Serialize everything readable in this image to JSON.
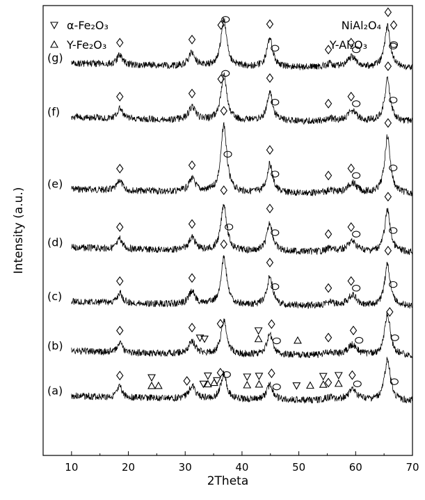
{
  "chart_data": {
    "type": "line",
    "xlabel": "2Theta",
    "ylabel": "Intensity (a.u.)",
    "xlim": [
      5,
      70
    ],
    "xticks": [
      10,
      20,
      30,
      40,
      50,
      60,
      70
    ],
    "ylim": [
      0,
      1
    ],
    "grid": false,
    "legend_left": [
      {
        "name": "α-Fe₂O₃",
        "marker": "triangle-down"
      },
      {
        "name": "Y-Fe₂O₃",
        "marker": "triangle-up"
      }
    ],
    "legend_right": [
      {
        "name": "NiAl₂O₄",
        "marker": "diamond"
      },
      {
        "name": "Y-Al₂O₃",
        "marker": "circle"
      }
    ],
    "peaks": [
      {
        "x": 18.5,
        "h": 2.0,
        "w": 0.5
      },
      {
        "x": 31.2,
        "h": 2.5,
        "w": 0.7
      },
      {
        "x": 36.8,
        "h": 9.0,
        "w": 0.6
      },
      {
        "x": 44.9,
        "h": 5.5,
        "w": 0.6
      },
      {
        "x": 55.5,
        "h": 0.6,
        "w": 0.8
      },
      {
        "x": 59.4,
        "h": 2.0,
        "w": 1.0
      },
      {
        "x": 65.6,
        "h": 8.0,
        "w": 0.6
      }
    ],
    "series": [
      {
        "name": "(a)",
        "baseline": 0.12,
        "scale": 1.0,
        "sample": 0
      },
      {
        "name": "(b)",
        "baseline": 0.22,
        "scale": 1.0,
        "sample": 1
      },
      {
        "name": "(c)",
        "baseline": 0.33,
        "scale": 1.0,
        "sample": 2
      },
      {
        "name": "(d)",
        "baseline": 0.45,
        "scale": 1.0,
        "sample": 3
      },
      {
        "name": "(e)",
        "baseline": 0.58,
        "scale": 1.0,
        "sample": 4
      },
      {
        "name": "(f)",
        "baseline": 0.74,
        "scale": 1.0,
        "sample": 5
      },
      {
        "name": "(g)",
        "baseline": 0.86,
        "scale": 1.0,
        "sample": 6
      }
    ],
    "annotations": [
      {
        "series": 0,
        "x": 18.5,
        "m": "diamond"
      },
      {
        "series": 0,
        "x": 24.1,
        "m": "triangle-up"
      },
      {
        "series": 0,
        "x": 24.1,
        "m": "triangle-down"
      },
      {
        "series": 0,
        "x": 25.3,
        "m": "triangle-up"
      },
      {
        "series": 0,
        "x": 30.3,
        "m": "diamond"
      },
      {
        "series": 0,
        "x": 33.2,
        "m": "triangle-down"
      },
      {
        "series": 0,
        "x": 34.0,
        "m": "triangle-up"
      },
      {
        "series": 0,
        "x": 34.0,
        "m": "triangle-down"
      },
      {
        "series": 0,
        "x": 35.1,
        "m": "triangle-up"
      },
      {
        "series": 0,
        "x": 35.6,
        "m": "triangle-down"
      },
      {
        "series": 0,
        "x": 36.2,
        "m": "diamond"
      },
      {
        "series": 0,
        "x": 37.3,
        "m": "circle"
      },
      {
        "series": 0,
        "x": 40.9,
        "m": "triangle-up"
      },
      {
        "series": 0,
        "x": 40.9,
        "m": "triangle-down"
      },
      {
        "series": 0,
        "x": 43.0,
        "m": "triangle-up"
      },
      {
        "series": 0,
        "x": 43.0,
        "m": "triangle-down"
      },
      {
        "series": 0,
        "x": 45.2,
        "m": "diamond"
      },
      {
        "series": 0,
        "x": 46.1,
        "m": "circle"
      },
      {
        "series": 0,
        "x": 49.6,
        "m": "triangle-down"
      },
      {
        "series": 0,
        "x": 52.0,
        "m": "triangle-up"
      },
      {
        "series": 0,
        "x": 54.3,
        "m": "triangle-up"
      },
      {
        "series": 0,
        "x": 54.3,
        "m": "triangle-down"
      },
      {
        "series": 0,
        "x": 55.2,
        "m": "diamond"
      },
      {
        "series": 0,
        "x": 57.0,
        "m": "triangle-up"
      },
      {
        "series": 0,
        "x": 57.0,
        "m": "triangle-down"
      },
      {
        "series": 0,
        "x": 59.4,
        "m": "diamond"
      },
      {
        "series": 0,
        "x": 60.3,
        "m": "circle"
      },
      {
        "series": 0,
        "x": 66.8,
        "m": "circle"
      },
      {
        "series": 1,
        "x": 18.5,
        "m": "diamond"
      },
      {
        "series": 1,
        "x": 31.2,
        "m": "diamond"
      },
      {
        "series": 1,
        "x": 32.6,
        "m": "triangle-down"
      },
      {
        "series": 1,
        "x": 33.4,
        "m": "triangle-down"
      },
      {
        "series": 1,
        "x": 36.2,
        "m": "diamond"
      },
      {
        "series": 1,
        "x": 42.9,
        "m": "triangle-up"
      },
      {
        "series": 1,
        "x": 42.9,
        "m": "triangle-down"
      },
      {
        "series": 1,
        "x": 45.2,
        "m": "diamond"
      },
      {
        "series": 1,
        "x": 46.1,
        "m": "circle"
      },
      {
        "series": 1,
        "x": 49.8,
        "m": "triangle-up"
      },
      {
        "series": 1,
        "x": 55.2,
        "m": "diamond"
      },
      {
        "series": 1,
        "x": 59.6,
        "m": "diamond"
      },
      {
        "series": 1,
        "x": 60.6,
        "m": "circle"
      },
      {
        "series": 1,
        "x": 66.0,
        "m": "diamond"
      },
      {
        "series": 1,
        "x": 66.9,
        "m": "circle"
      },
      {
        "series": 2,
        "x": 18.5,
        "m": "diamond"
      },
      {
        "series": 2,
        "x": 31.2,
        "m": "diamond"
      },
      {
        "series": 2,
        "x": 36.8,
        "m": "diamond"
      },
      {
        "series": 2,
        "x": 44.9,
        "m": "diamond"
      },
      {
        "series": 2,
        "x": 45.8,
        "m": "circle"
      },
      {
        "series": 2,
        "x": 55.2,
        "m": "diamond"
      },
      {
        "series": 2,
        "x": 59.2,
        "m": "diamond"
      },
      {
        "series": 2,
        "x": 60.1,
        "m": "circle"
      },
      {
        "series": 2,
        "x": 65.7,
        "m": "diamond"
      },
      {
        "series": 2,
        "x": 66.6,
        "m": "circle"
      },
      {
        "series": 3,
        "x": 18.5,
        "m": "diamond"
      },
      {
        "series": 3,
        "x": 31.2,
        "m": "diamond"
      },
      {
        "series": 3,
        "x": 36.8,
        "m": "diamond"
      },
      {
        "series": 3,
        "x": 37.7,
        "m": "circle"
      },
      {
        "series": 3,
        "x": 44.9,
        "m": "diamond"
      },
      {
        "series": 3,
        "x": 45.8,
        "m": "circle"
      },
      {
        "series": 3,
        "x": 55.2,
        "m": "diamond"
      },
      {
        "series": 3,
        "x": 59.2,
        "m": "diamond"
      },
      {
        "series": 3,
        "x": 60.1,
        "m": "circle"
      },
      {
        "series": 3,
        "x": 65.7,
        "m": "diamond"
      },
      {
        "series": 3,
        "x": 66.6,
        "m": "circle"
      },
      {
        "series": 4,
        "x": 18.5,
        "m": "diamond"
      },
      {
        "series": 4,
        "x": 31.2,
        "m": "diamond"
      },
      {
        "series": 4,
        "x": 36.8,
        "m": "diamond"
      },
      {
        "series": 4,
        "x": 37.5,
        "m": "circle"
      },
      {
        "series": 4,
        "x": 44.9,
        "m": "diamond"
      },
      {
        "series": 4,
        "x": 45.8,
        "m": "circle"
      },
      {
        "series": 4,
        "x": 55.2,
        "m": "diamond"
      },
      {
        "series": 4,
        "x": 59.2,
        "m": "diamond"
      },
      {
        "series": 4,
        "x": 60.1,
        "m": "circle"
      },
      {
        "series": 4,
        "x": 65.7,
        "m": "diamond"
      },
      {
        "series": 4,
        "x": 66.6,
        "m": "circle"
      },
      {
        "series": 5,
        "x": 18.5,
        "m": "diamond"
      },
      {
        "series": 5,
        "x": 31.2,
        "m": "diamond"
      },
      {
        "series": 5,
        "x": 36.3,
        "m": "diamond"
      },
      {
        "series": 5,
        "x": 37.1,
        "m": "circle"
      },
      {
        "series": 5,
        "x": 44.9,
        "m": "diamond"
      },
      {
        "series": 5,
        "x": 45.8,
        "m": "circle"
      },
      {
        "series": 5,
        "x": 55.2,
        "m": "diamond"
      },
      {
        "series": 5,
        "x": 59.2,
        "m": "diamond"
      },
      {
        "series": 5,
        "x": 60.1,
        "m": "circle"
      },
      {
        "series": 5,
        "x": 65.7,
        "m": "diamond"
      },
      {
        "series": 5,
        "x": 66.6,
        "m": "circle"
      },
      {
        "series": 6,
        "x": 18.5,
        "m": "diamond"
      },
      {
        "series": 6,
        "x": 31.2,
        "m": "diamond"
      },
      {
        "series": 6,
        "x": 36.3,
        "m": "diamond"
      },
      {
        "series": 6,
        "x": 37.1,
        "m": "circle"
      },
      {
        "series": 6,
        "x": 44.9,
        "m": "diamond"
      },
      {
        "series": 6,
        "x": 45.8,
        "m": "circle"
      },
      {
        "series": 6,
        "x": 55.2,
        "m": "diamond"
      },
      {
        "series": 6,
        "x": 59.2,
        "m": "diamond"
      },
      {
        "series": 6,
        "x": 60.1,
        "m": "circle"
      },
      {
        "series": 6,
        "x": 65.7,
        "m": "diamond"
      },
      {
        "series": 6,
        "x": 66.6,
        "m": "circle"
      }
    ]
  }
}
